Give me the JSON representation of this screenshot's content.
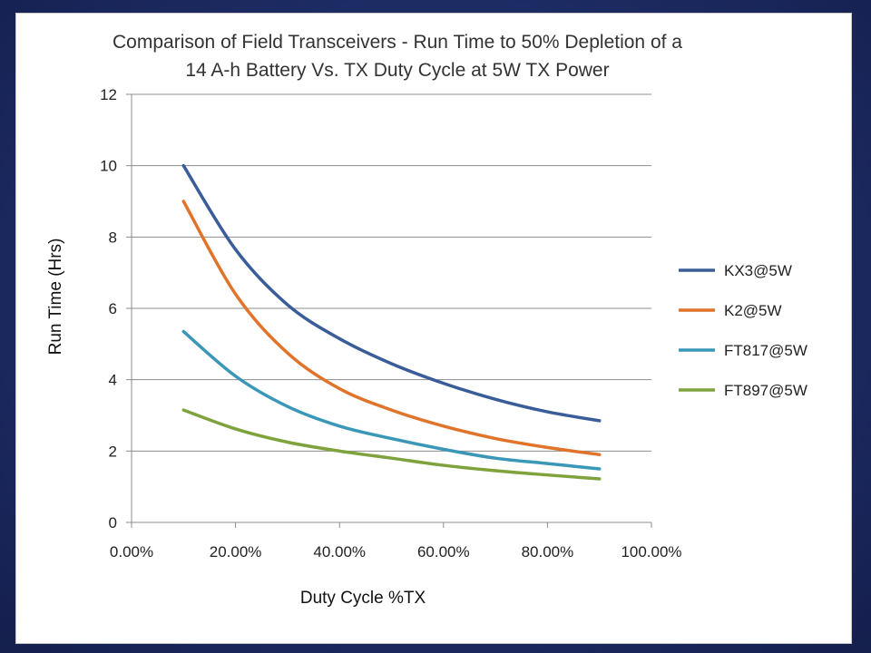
{
  "chart_data": {
    "type": "line",
    "title_lines": [
      "Comparison of Field Transceivers - Run Time to 50% Depletion of a",
      "14 A-h Battery Vs. TX Duty Cycle  at 5W TX Power"
    ],
    "xlabel": "Duty Cycle %TX",
    "ylabel": "Run Time (Hrs)",
    "xlim": [
      0,
      100
    ],
    "ylim": [
      0,
      12
    ],
    "x_ticks": [
      0,
      20,
      40,
      60,
      80,
      100
    ],
    "x_tick_labels": [
      "0.00%",
      "20.00%",
      "40.00%",
      "60.00%",
      "80.00%",
      "100.00%"
    ],
    "y_ticks": [
      0,
      2,
      4,
      6,
      8,
      10,
      12
    ],
    "y_tick_labels": [
      "0",
      "2",
      "4",
      "6",
      "8",
      "10",
      "12"
    ],
    "grid": "horizontal",
    "legend_position": "right",
    "x": [
      10,
      20,
      30,
      40,
      50,
      60,
      70,
      80,
      90
    ],
    "series": [
      {
        "name": "KX3@5W",
        "color": "#3a5c99",
        "values": [
          10.0,
          7.65,
          6.1,
          5.15,
          4.45,
          3.9,
          3.45,
          3.1,
          2.85
        ]
      },
      {
        "name": "K2@5W",
        "color": "#e0742b",
        "values": [
          9.0,
          6.4,
          4.75,
          3.75,
          3.15,
          2.7,
          2.35,
          2.1,
          1.9
        ]
      },
      {
        "name": "FT817@5W",
        "color": "#3a97b7",
        "values": [
          5.35,
          4.1,
          3.25,
          2.7,
          2.35,
          2.05,
          1.8,
          1.65,
          1.5
        ]
      },
      {
        "name": "FT897@5W",
        "color": "#7ea33d",
        "values": [
          3.15,
          2.62,
          2.25,
          2.0,
          1.8,
          1.6,
          1.45,
          1.33,
          1.22
        ]
      }
    ]
  }
}
